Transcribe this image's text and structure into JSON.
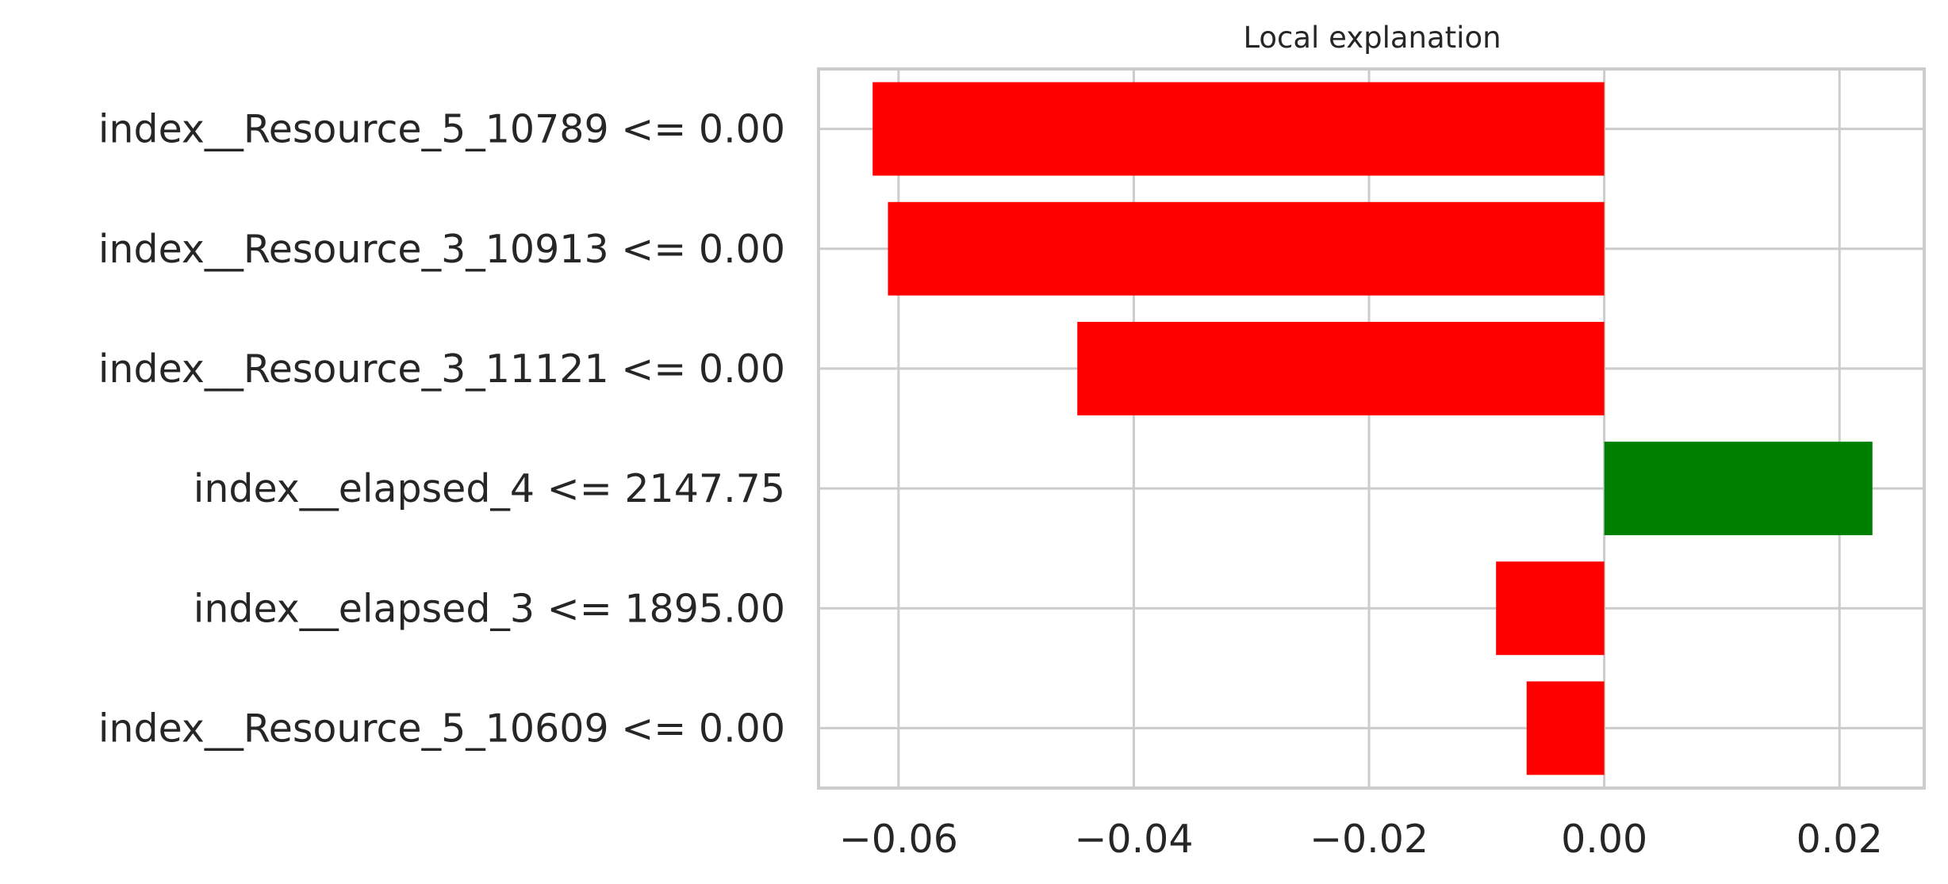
{
  "chart_data": {
    "type": "bar",
    "orientation": "horizontal",
    "title": "Local explanation",
    "xlabel": "",
    "ylabel": "",
    "categories": [
      "index__Resource_5_10789 <= 0.00",
      "index__Resource_3_10913 <= 0.00",
      "index__Resource_3_11121 <= 0.00",
      "index__elapsed_4 <= 2147.75",
      "index__elapsed_3 <= 1895.00",
      "index__Resource_5_10609 <= 0.00"
    ],
    "values": [
      -0.0622,
      -0.0609,
      -0.0448,
      0.0228,
      -0.0092,
      -0.0066
    ],
    "xlim": [
      -0.0668,
      0.0272
    ],
    "xticks": [
      -0.06,
      -0.04,
      -0.02,
      0.0,
      0.02
    ],
    "xtick_labels": [
      "−0.06",
      "−0.04",
      "−0.02",
      "0.00",
      "0.02"
    ],
    "grid": true,
    "colors": {
      "positive": "#008000",
      "negative": "#ff0000",
      "grid": "#cccccc",
      "text": "#262626"
    }
  }
}
